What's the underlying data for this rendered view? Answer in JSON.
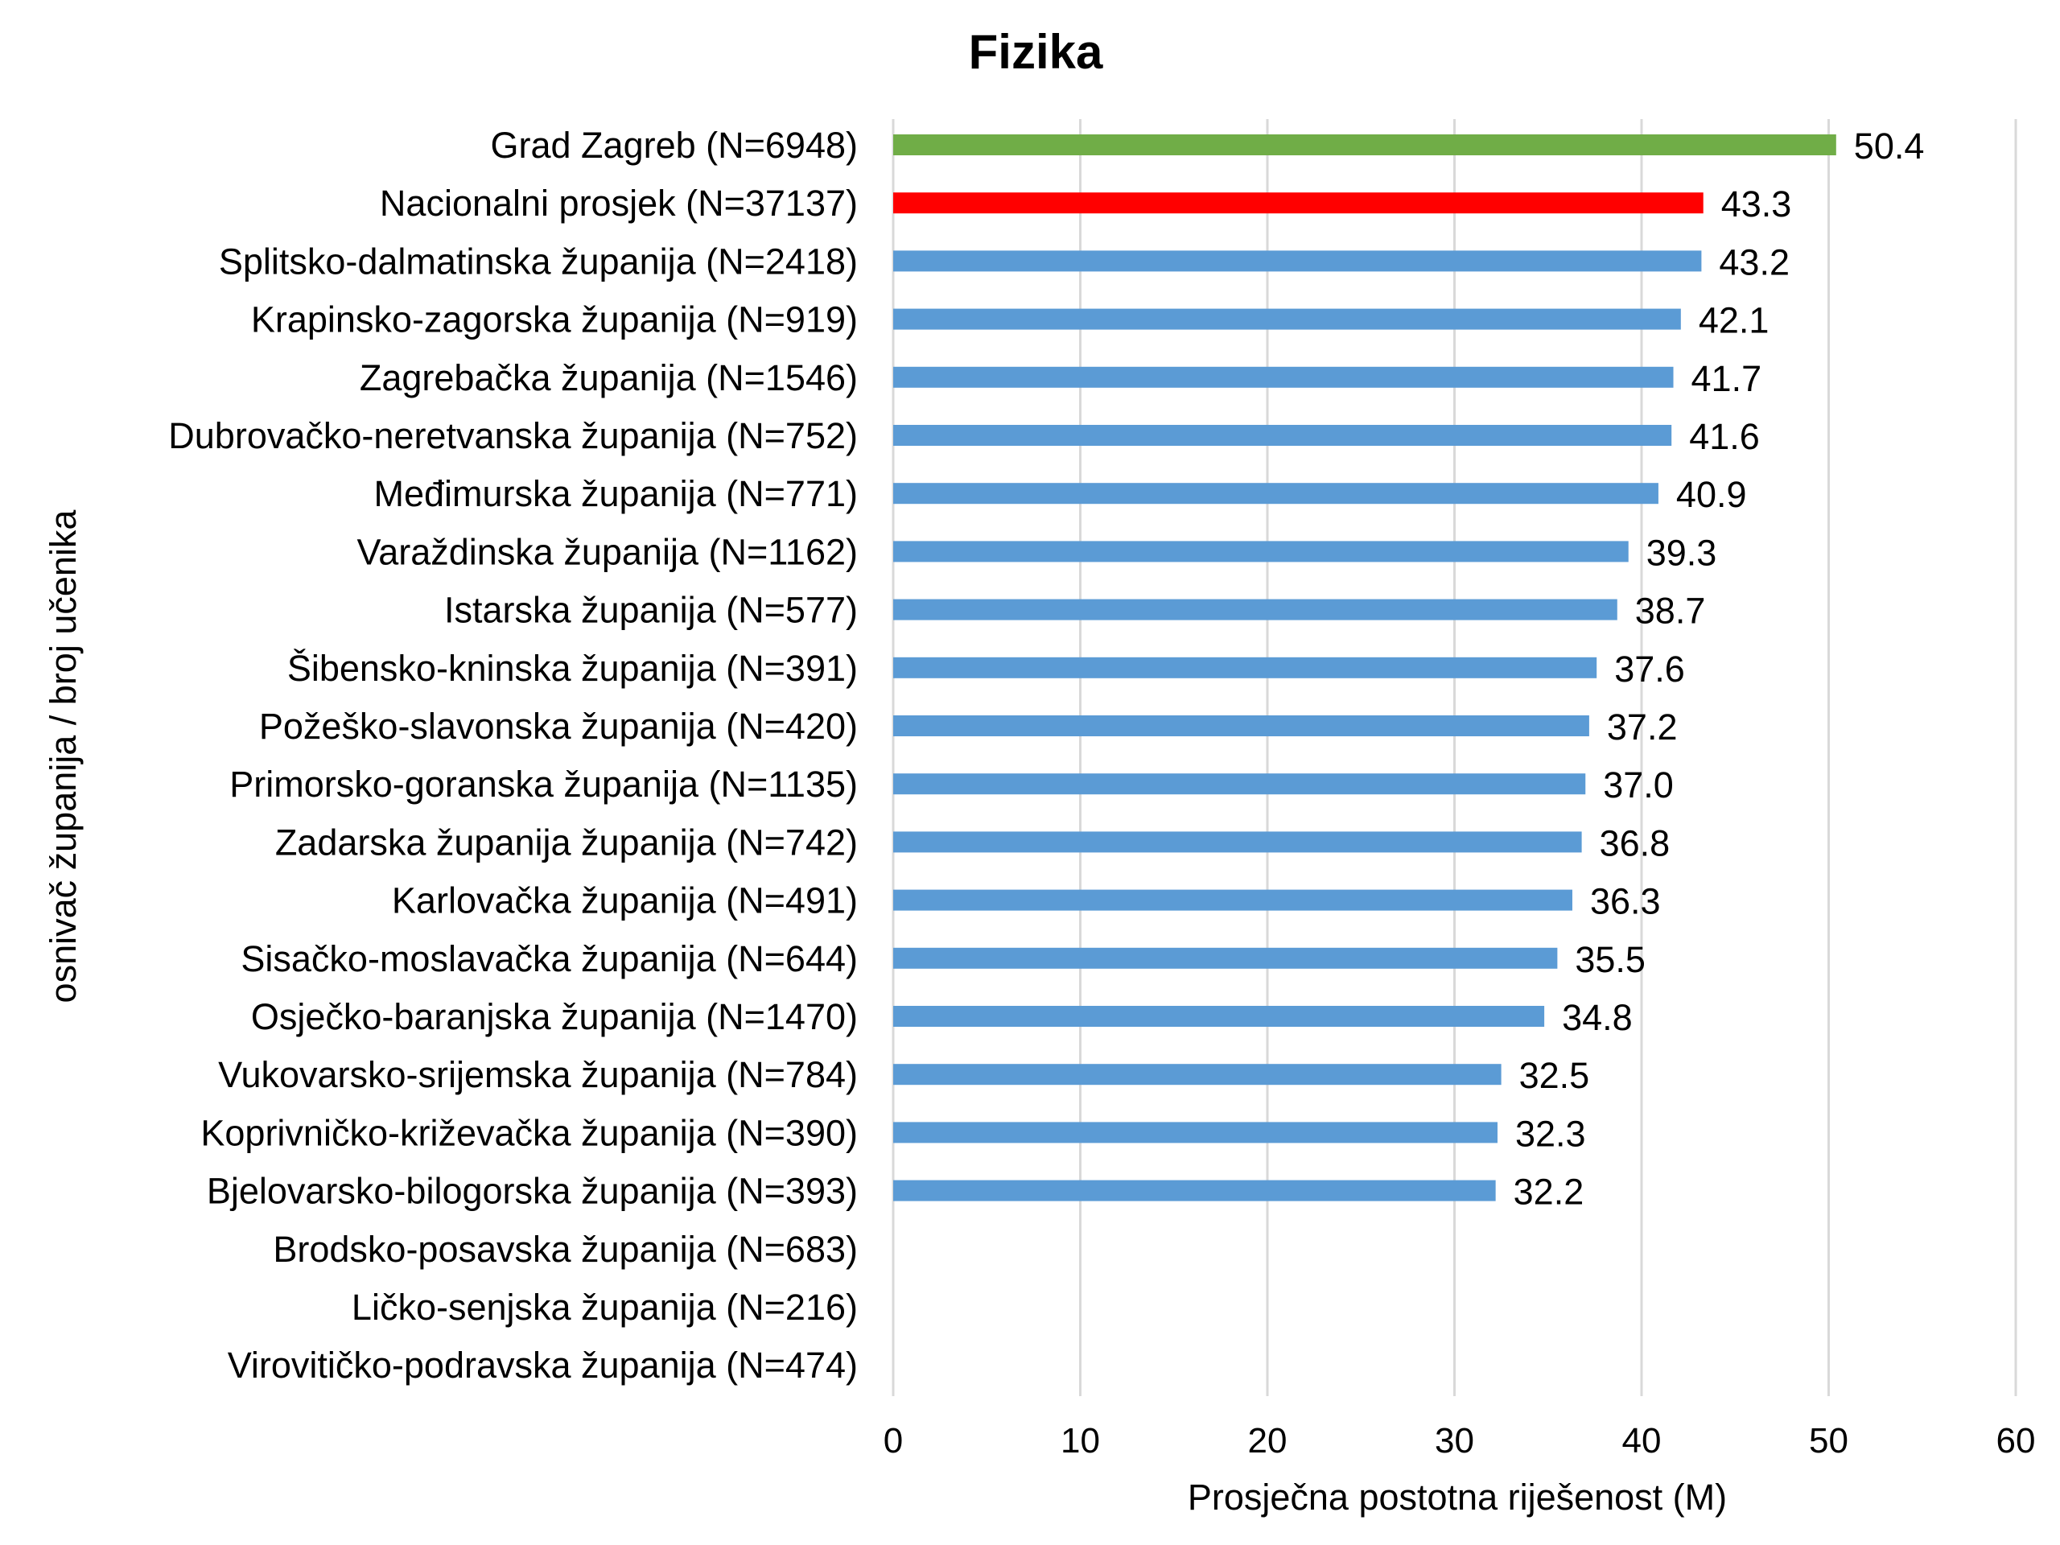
{
  "chart_data": {
    "type": "bar",
    "orientation": "horizontal",
    "title": "Fizika",
    "xlabel": "Prosječna postotna riješenost (M)",
    "ylabel": "osnivač županija / broj učenika",
    "xlim": [
      0,
      60
    ],
    "xticks": [
      "0",
      "10",
      "20",
      "30",
      "40",
      "50",
      "60"
    ],
    "grid": true,
    "colors": {
      "default": "#5B9BD5",
      "highlight_zagreb": "#70AD47",
      "highlight_national": "#FF0000",
      "national_label": "#FF0000"
    },
    "categories": [
      "Grad Zagreb (N=6948)",
      "Nacionalni prosjek (N=37137)",
      "Splitsko-dalmatinska županija (N=2418)",
      "Krapinsko-zagorska županija (N=919)",
      "Zagrebačka županija (N=1546)",
      "Dubrovačko-neretvanska županija (N=752)",
      "Međimurska županija (N=771)",
      "Varaždinska županija (N=1162)",
      "Istarska županija (N=577)",
      "Šibensko-kninska županija (N=391)",
      "Požeško-slavonska županija (N=420)",
      "Primorsko-goranska županija (N=1135)",
      "Zadarska županija županija (N=742)",
      "Karlovačka županija (N=491)",
      "Sisačko-moslavačka županija (N=644)",
      "Osječko-baranjska županija (N=1470)",
      "Vukovarsko-srijemska županija (N=784)",
      "Koprivničko-križevačka županija (N=390)",
      "Bjelovarsko-bilogorska županija (N=393)",
      "Brodsko-posavska županija (N=683)",
      "Ličko-senjska županija (N=216)",
      "Virovitičko-podravska županija (N=474)"
    ],
    "values": [
      50.4,
      43.3,
      43.2,
      42.1,
      41.7,
      41.6,
      40.9,
      39.3,
      38.7,
      37.6,
      37.2,
      37.0,
      36.8,
      36.3,
      35.5,
      34.8,
      32.5,
      32.3,
      32.2,
      null,
      null,
      null
    ],
    "value_labels": [
      "50.4",
      "43.3",
      "43.2",
      "42.1",
      "41.7",
      "41.6",
      "40.9",
      "39.3",
      "38.7",
      "37.6",
      "37.2",
      "37.0",
      "36.8",
      "36.3",
      "35.5",
      "34.8",
      "32.5",
      "32.3",
      "32.2",
      "",
      "",
      ""
    ],
    "highlights": {
      "0": "highlight_zagreb",
      "1": "highlight_national"
    }
  }
}
